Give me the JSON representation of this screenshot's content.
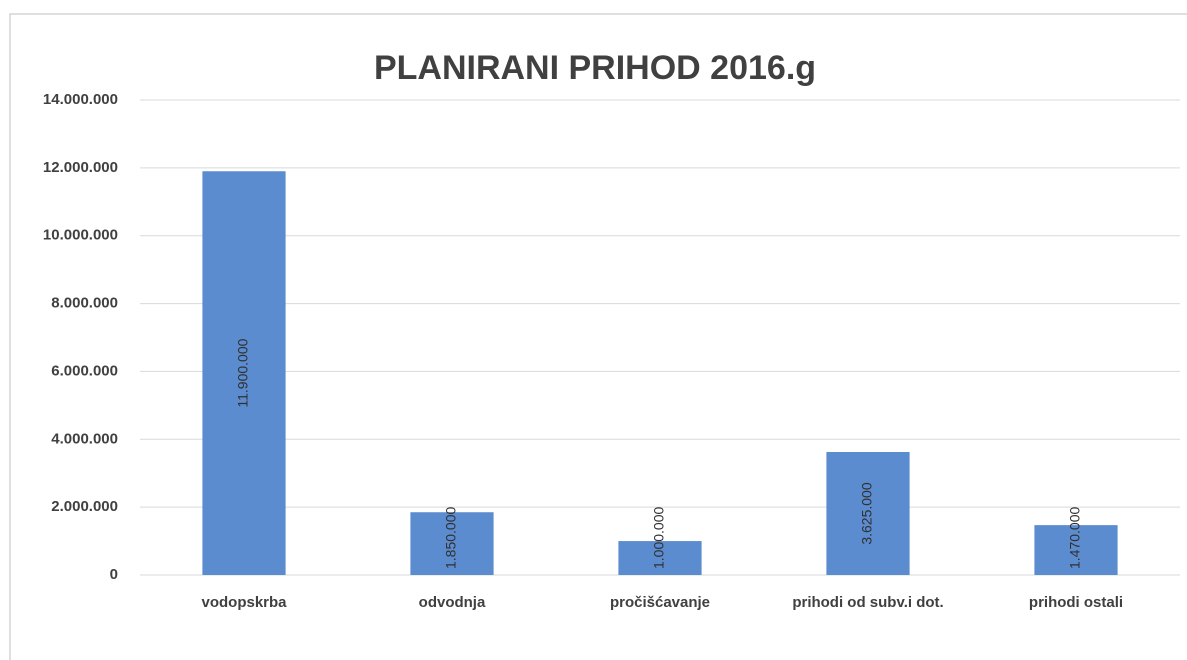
{
  "chart_data": {
    "type": "bar",
    "title": "PLANIRANI PRIHOD 2016.g",
    "categories": [
      "vodopskrba",
      "odvodnja",
      "pročišćavanje",
      "prihodi od subv.i dot.",
      "prihodi ostali"
    ],
    "values": [
      11900000,
      1850000,
      1000000,
      3625000,
      1470000
    ],
    "value_labels": [
      "11.900.000",
      "1.850.000",
      "1.000.000",
      "3.625.000",
      "1.470.000"
    ],
    "color": "#5b8ccf",
    "ylim": [
      0,
      14000000
    ],
    "yticks": [
      0,
      {
        "value": 2000000,
        "label": "2.000.000"
      },
      {
        "value": 4000000,
        "label": "4.000.000"
      },
      {
        "value": 6000000,
        "label": "6.000.000"
      },
      {
        "value": 8000000,
        "label": "8.000.000"
      },
      {
        "value": 10000000,
        "label": "10.000.000"
      },
      {
        "value": 12000000,
        "label": "12.000.000"
      },
      {
        "value": 14000000,
        "label": "14.000.000"
      }
    ],
    "grid": true
  }
}
